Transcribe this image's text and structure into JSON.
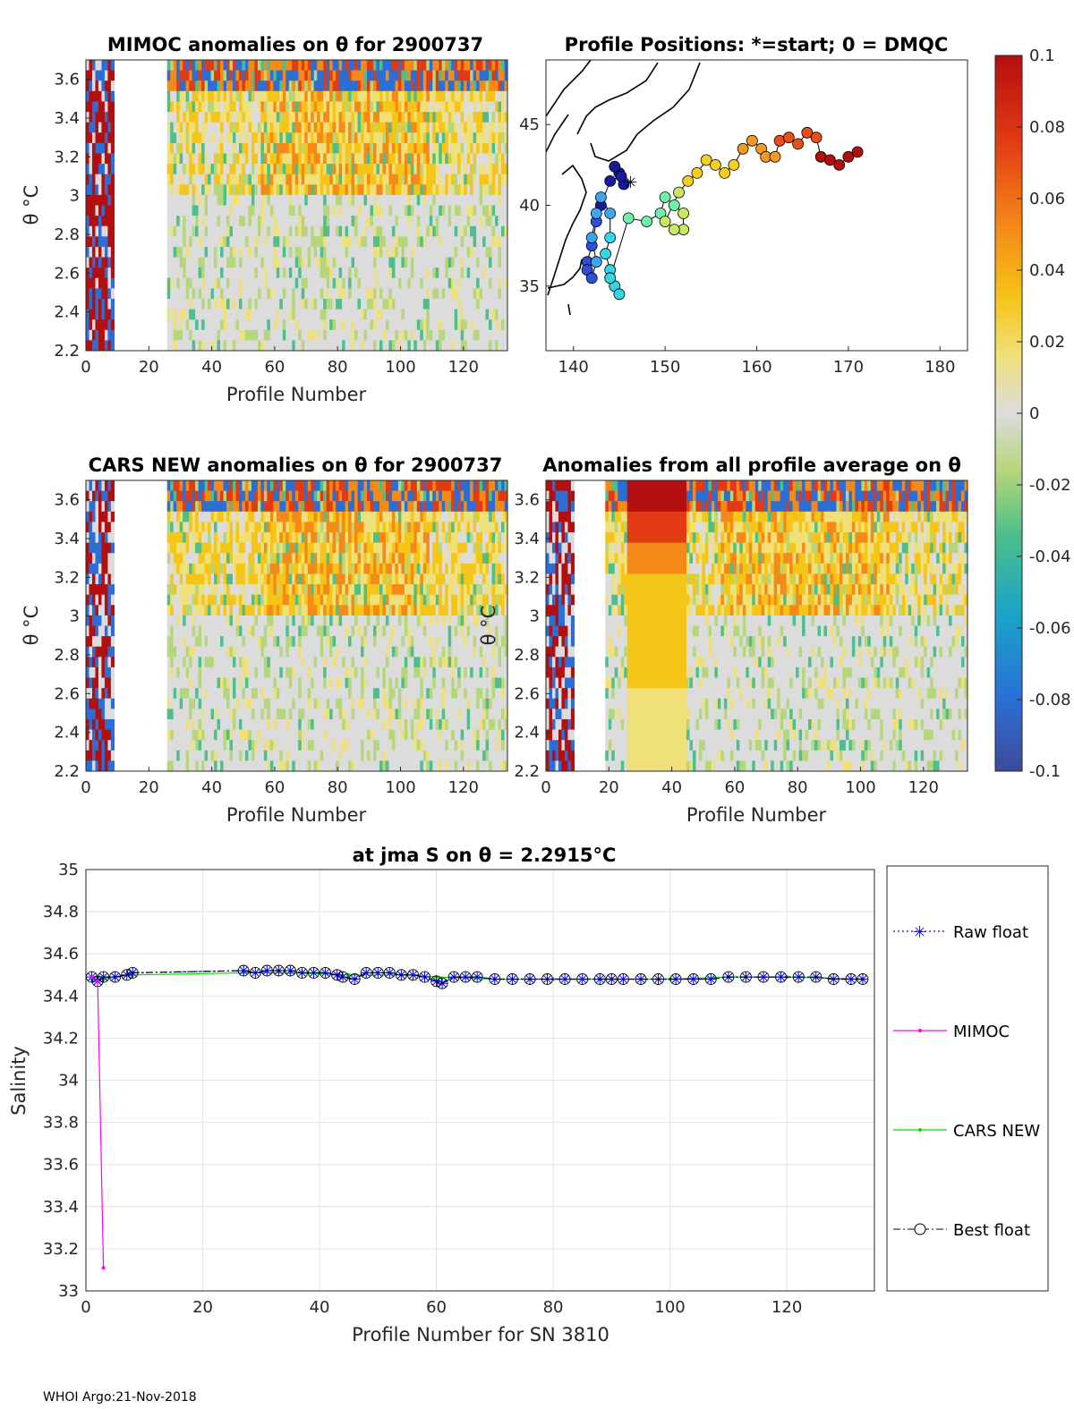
{
  "colors": {
    "raw": "#0000ff",
    "mimoc": "#ff00ff",
    "cars": "#00e000",
    "best": "#000000",
    "map_points": [
      "#1a1aa0",
      "#2f4fd8",
      "#3aa6f0",
      "#33d6e6",
      "#6ef0a8",
      "#c8e860",
      "#f5d020",
      "#f59a20",
      "#e8501a",
      "#b01010"
    ],
    "colorbar": [
      "#352a87",
      "#2b6fd6",
      "#1aa4c8",
      "#4dbf8a",
      "#b6d67a",
      "#dcdcdc",
      "#f0e07a",
      "#f5c518",
      "#f58a18",
      "#e23b14",
      "#b40f0f"
    ]
  },
  "panels": {
    "mimoc": {
      "title": "MIMOC anomalies on θ  for 2900737",
      "xlabel": "Profile Number",
      "ylabel": "θ °C",
      "xticks": [
        "0",
        "20",
        "40",
        "60",
        "80",
        "100",
        "120"
      ],
      "yticks": [
        "2.2",
        "2.4",
        "2.6",
        "2.8",
        "3",
        "3.2",
        "3.4",
        "3.6"
      ]
    },
    "map": {
      "title": "Profile Positions: *=start; 0 = DMQC",
      "xticks": [
        "140",
        "150",
        "160",
        "170",
        "180"
      ],
      "yticks": [
        "35",
        "40",
        "45"
      ]
    },
    "cars": {
      "title": "CARS NEW anomalies on θ for 2900737",
      "xlabel": "Profile Number",
      "ylabel": "θ °C",
      "xticks": [
        "0",
        "20",
        "40",
        "60",
        "80",
        "100",
        "120"
      ],
      "yticks": [
        "2.2",
        "2.4",
        "2.6",
        "2.8",
        "3",
        "3.2",
        "3.4",
        "3.6"
      ]
    },
    "avg": {
      "title": "Anomalies from all profile average on θ",
      "xlabel": "Profile Number",
      "ylabel": "θ °C",
      "xticks": [
        "0",
        "20",
        "40",
        "60",
        "80",
        "100",
        "120"
      ],
      "yticks": [
        "2.2",
        "2.4",
        "2.6",
        "2.8",
        "3",
        "3.2",
        "3.4",
        "3.6"
      ]
    },
    "colorbar": {
      "ticks": [
        "0.1",
        "0.08",
        "0.06",
        "0.04",
        "0.02",
        "0",
        "-0.02",
        "-0.04",
        "-0.06",
        "-0.08",
        "-0.1"
      ]
    }
  },
  "chart_data": {
    "type": "line",
    "title": "at jma S on θ = 2.2915°C",
    "xlabel": "Profile Number for SN 3810",
    "ylabel": "Salinity",
    "xlim": [
      0,
      135
    ],
    "ylim": [
      33,
      35
    ],
    "xticks": [
      "0",
      "20",
      "40",
      "60",
      "80",
      "100",
      "120"
    ],
    "yticks": [
      "33",
      "33.2",
      "33.4",
      "33.6",
      "33.8",
      "34",
      "34.2",
      "34.4",
      "34.6",
      "34.8",
      "35"
    ],
    "series": [
      {
        "name": "Raw float",
        "style": "dotted-star",
        "x": [
          1,
          2,
          3,
          5,
          7,
          8,
          27,
          29,
          31,
          33,
          35,
          37,
          39,
          41,
          43,
          44,
          46,
          48,
          50,
          52,
          54,
          56,
          58,
          60,
          61,
          63,
          65,
          67,
          70,
          73,
          76,
          79,
          82,
          85,
          88,
          90,
          92,
          95,
          98,
          101,
          104,
          107,
          110,
          113,
          116,
          119,
          122,
          125,
          128,
          131,
          133
        ],
        "values": [
          34.49,
          34.47,
          34.49,
          34.49,
          34.5,
          34.51,
          34.52,
          34.51,
          34.52,
          34.52,
          34.52,
          34.51,
          34.51,
          34.51,
          34.5,
          34.49,
          34.48,
          34.51,
          34.51,
          34.51,
          34.5,
          34.5,
          34.49,
          34.47,
          34.46,
          34.49,
          34.49,
          34.49,
          34.48,
          34.48,
          34.48,
          34.48,
          34.48,
          34.48,
          34.48,
          34.48,
          34.48,
          34.48,
          34.48,
          34.48,
          34.48,
          34.48,
          34.49,
          34.49,
          34.49,
          34.49,
          34.49,
          34.49,
          34.48,
          34.48,
          34.48
        ]
      },
      {
        "name": "MIMOC",
        "style": "solid-dot",
        "x": [
          1,
          2,
          3
        ],
        "values": [
          34.49,
          34.47,
          33.11
        ]
      },
      {
        "name": "CARS NEW",
        "style": "solid-dot",
        "x": [
          1,
          3,
          5,
          8,
          27,
          35,
          45,
          55,
          60,
          70,
          80,
          90,
          100,
          110,
          120,
          133
        ],
        "values": [
          34.48,
          34.48,
          34.49,
          34.5,
          34.51,
          34.51,
          34.5,
          34.5,
          34.49,
          34.48,
          34.48,
          34.48,
          34.48,
          34.49,
          34.49,
          34.48
        ]
      },
      {
        "name": "Best float",
        "style": "dashdot-circle",
        "x": [
          1,
          2,
          3,
          5,
          7,
          8,
          27,
          29,
          31,
          33,
          35,
          37,
          39,
          41,
          43,
          44,
          46,
          48,
          50,
          52,
          54,
          56,
          58,
          60,
          61,
          63,
          65,
          67,
          70,
          73,
          76,
          79,
          82,
          85,
          88,
          90,
          92,
          95,
          98,
          101,
          104,
          107,
          110,
          113,
          116,
          119,
          122,
          125,
          128,
          131,
          133
        ],
        "values": [
          34.49,
          34.47,
          34.49,
          34.49,
          34.5,
          34.51,
          34.52,
          34.51,
          34.52,
          34.52,
          34.52,
          34.51,
          34.51,
          34.51,
          34.5,
          34.49,
          34.48,
          34.51,
          34.51,
          34.51,
          34.5,
          34.5,
          34.49,
          34.47,
          34.46,
          34.49,
          34.49,
          34.49,
          34.48,
          34.48,
          34.48,
          34.48,
          34.48,
          34.48,
          34.48,
          34.48,
          34.48,
          34.48,
          34.48,
          34.48,
          34.48,
          34.48,
          34.49,
          34.49,
          34.49,
          34.49,
          34.49,
          34.49,
          34.48,
          34.48,
          34.48
        ]
      }
    ],
    "legend": [
      "Raw float",
      "MIMOC",
      "CARS NEW",
      "Best float"
    ],
    "legend_position": "right",
    "grid": true
  },
  "footer": "WHOI Argo:21-Nov-2018"
}
